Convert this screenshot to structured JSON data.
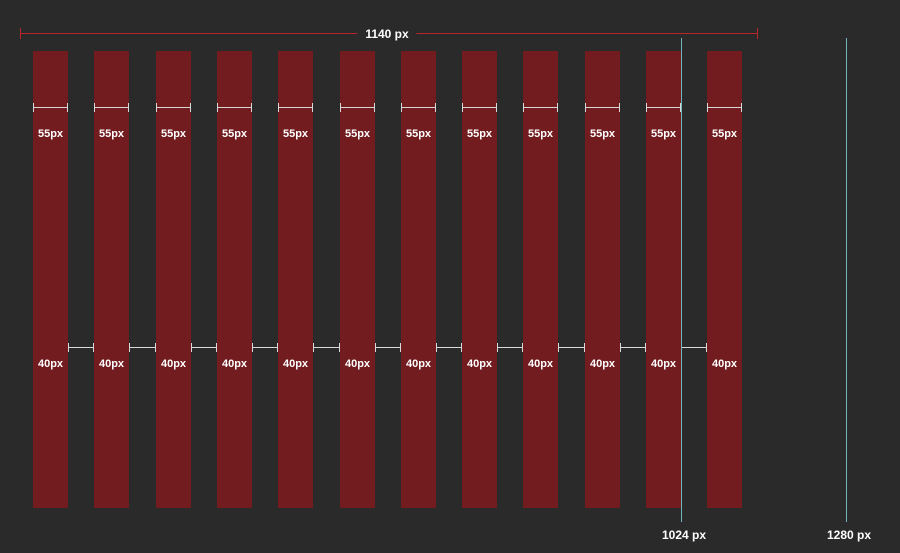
{
  "container": {
    "width_label": "1140 px",
    "column_count": 12,
    "column_width_label": "55px",
    "gutter_width_label": "40px"
  },
  "breakpoints": [
    {
      "label": "1024 px"
    },
    {
      "label": "1280 px"
    }
  ],
  "colors": {
    "background": "#2a2a2b",
    "column": "#721c1f",
    "container_rule": "#b8262b",
    "breakpoint_line": "#6fb6bd",
    "measure_line": "#d8d8d8",
    "text": "#ffffff"
  }
}
